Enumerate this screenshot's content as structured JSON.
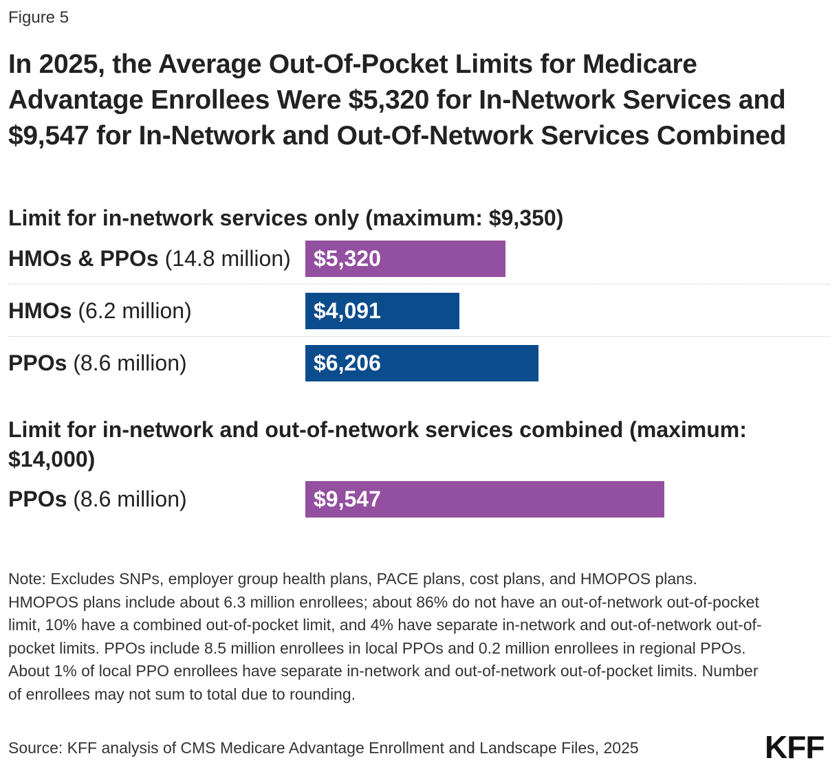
{
  "figure_label": "Figure 5",
  "title": "In 2025, the Average Out-Of-Pocket Limits for Medicare Advantage Enrollees Were $5,320 for In-Network Services and $9,547 for In-Network and Out-Of-Network Services Combined",
  "chart_data": [
    {
      "type": "bar",
      "orientation": "horizontal",
      "title": "Limit for in-network services only (maximum: $9,350)",
      "categories": [
        "HMOs & PPOs",
        "HMOs",
        "PPOs"
      ],
      "category_notes": [
        "(14.8 million)",
        "(6.2 million)",
        "(8.6 million)"
      ],
      "values": [
        5320,
        4091,
        6206
      ],
      "value_labels": [
        "$5,320",
        "$4,091",
        "$6,206"
      ],
      "bar_colors": [
        "#934fa0",
        "#0b4c8c",
        "#0b4c8c"
      ],
      "xlim": [
        0,
        16000
      ]
    },
    {
      "type": "bar",
      "orientation": "horizontal",
      "title": "Limit for in-network and out-of-network services combined (maximum: $14,000)",
      "categories": [
        "PPOs"
      ],
      "category_notes": [
        "(8.6 million)"
      ],
      "values": [
        9547
      ],
      "value_labels": [
        "$9,547"
      ],
      "bar_colors": [
        "#934fa0"
      ],
      "xlim": [
        0,
        16000
      ]
    }
  ],
  "note": "Note: Excludes SNPs, employer group health plans, PACE plans, cost plans, and HMOPOS plans. HMOPOS plans include about 6.3 million enrollees; about 86% do not have an out-of-network out-of-pocket limit, 10% have a combined out-of-pocket limit, and 4% have separate in-network and out-of-network out-of-pocket limits. PPOs include 8.5 million enrollees in local PPOs and 0.2 million enrollees in regional PPOs. About 1% of local PPO enrollees have separate in-network and out-of-network out-of-pocket limits. Number of enrollees may not sum to total due to rounding.",
  "source": "Source: KFF analysis of CMS Medicare Advantage Enrollment and Landscape Files, 2025",
  "logo_text": "KFF"
}
